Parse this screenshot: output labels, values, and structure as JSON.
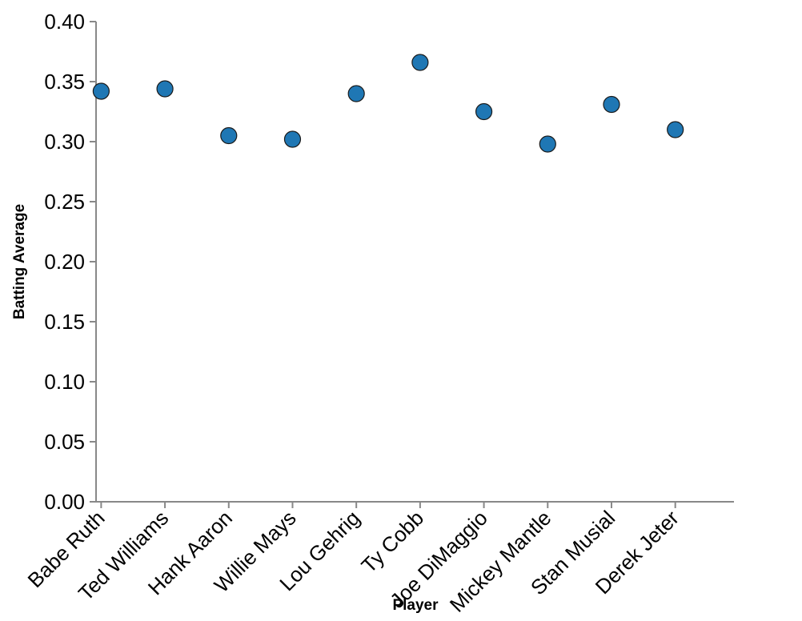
{
  "chart_data": {
    "type": "scatter",
    "title": "",
    "xlabel": "Player",
    "ylabel": "Batting Average",
    "categories": [
      "Babe Ruth",
      "Ted Williams",
      "Hank Aaron",
      "Willie Mays",
      "Lou Gehrig",
      "Ty Cobb",
      "Joe DiMaggio",
      "Mickey Mantle",
      "Stan Musial",
      "Derek Jeter"
    ],
    "values": [
      0.342,
      0.344,
      0.305,
      0.302,
      0.34,
      0.366,
      0.325,
      0.298,
      0.331,
      0.31
    ],
    "ylim": [
      0,
      0.4
    ],
    "yticks": [
      "0.00",
      "0.05",
      "0.10",
      "0.15",
      "0.20",
      "0.25",
      "0.30",
      "0.35",
      "0.40"
    ],
    "grid": false,
    "legend": "none",
    "point_color": "#1f77b4"
  }
}
